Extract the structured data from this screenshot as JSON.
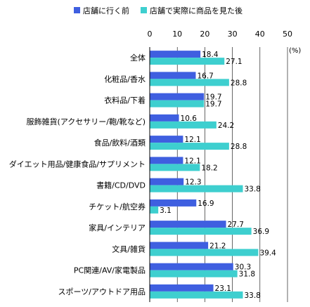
{
  "chart_data": {
    "type": "bar",
    "orientation": "horizontal",
    "title": "",
    "xlabel": "",
    "ylabel": "",
    "unit_label": "(%)",
    "xlim": [
      0,
      50
    ],
    "ticks": [
      0,
      10,
      20,
      30,
      40,
      50
    ],
    "grid": true,
    "legend_position": "top",
    "categories": [
      "全体",
      "化粧品/香水",
      "衣料品/下着",
      "服飾雑貨(アクセサリー/鞄/靴など)",
      "食品/飲料/酒類",
      "ダイエット用品/健康食品/サプリメント",
      "書籍/CD/DVD",
      "チケット/航空券",
      "家具/インテリア",
      "文具/雑貨",
      "PC関連/AV/家電製品",
      "スポーツ/アウトドア用品"
    ],
    "series": [
      {
        "name": "店舗に行く前",
        "color": "#3f5fe0",
        "values": [
          18.4,
          16.7,
          19.7,
          10.6,
          12.1,
          12.1,
          12.3,
          16.9,
          27.7,
          21.2,
          30.3,
          23.1
        ]
      },
      {
        "name": "店舗で実際に商品を見た後",
        "color": "#3ecfcf",
        "values": [
          27.1,
          28.8,
          19.7,
          24.2,
          28.8,
          18.2,
          33.8,
          3.1,
          36.9,
          39.4,
          31.8,
          33.8
        ]
      }
    ]
  }
}
